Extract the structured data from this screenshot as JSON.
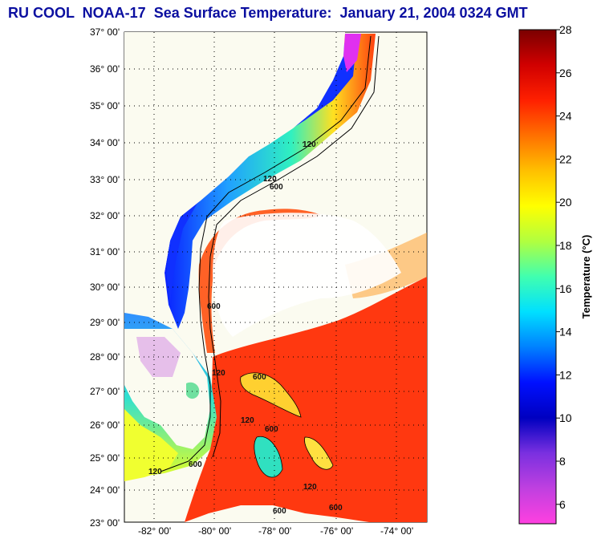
{
  "title": "RU COOL  NOAA-17  Sea Surface Temperature:  January 21, 2004 0324 GMT",
  "map": {
    "lat_labels": [
      "37° 00'",
      "36° 00'",
      "35° 00'",
      "34° 00'",
      "33° 00'",
      "32° 00'",
      "31° 00'",
      "30° 00'",
      "29° 00'",
      "28° 00'",
      "27° 00'",
      "26° 00'",
      "25° 00'",
      "24° 00'",
      "23° 00'"
    ],
    "lon_labels": [
      "-82° 00'",
      "-80° 00'",
      "-78° 00'",
      "-76° 00'",
      "-74° 00'"
    ],
    "depth_labels": [
      "120",
      "600",
      "120",
      "600",
      "120",
      "600",
      "120",
      "600",
      "120",
      "600",
      "120",
      "600",
      "600"
    ],
    "colors": {
      "land": "#fbfbf0",
      "cold": "#0a1cff",
      "cool": "#18d6e8",
      "warm": "#ffcc10",
      "hot": "#ff3010",
      "contour": "#000000"
    }
  },
  "colorbar": {
    "title": "Temperature (°C)",
    "ticks": [
      "28",
      "26",
      "24",
      "22",
      "20",
      "18",
      "16",
      "14",
      "12",
      "10",
      "8",
      "6"
    ],
    "range": [
      5.1,
      28
    ],
    "colors_top_to_bottom": [
      "#7a0000",
      "#d00000",
      "#ff2000",
      "#ff7000",
      "#ffc000",
      "#ffff00",
      "#b0ff40",
      "#40ffb0",
      "#00e0ff",
      "#0080ff",
      "#0010ff",
      "#0000c0",
      "#7a30e0",
      "#c040e0",
      "#ff40e0"
    ]
  }
}
